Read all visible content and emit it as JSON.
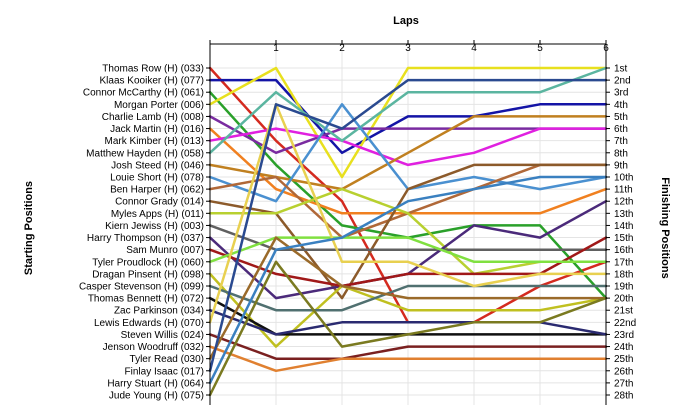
{
  "chart_data": {
    "type": "line",
    "title": "Laps",
    "ylabel": "Starting Positions",
    "y2label": "Finishing Positions",
    "laps": [
      "1",
      "2",
      "3",
      "4",
      "5",
      "6"
    ],
    "x": [
      0,
      1,
      2,
      3,
      4,
      5,
      6
    ],
    "starting_positions": [
      "Thomas Row (H) (033)",
      "Klaas Kooiker (H) (077)",
      "Connor McCarthy (H) (061)",
      "Morgan Porter (006)",
      "Charlie Lamb (H) (008)",
      "Jack Martin (H) (016)",
      "Mark Kimber (H) (013)",
      "Matthew Hayden (H) (058)",
      "Josh Steed (H) (046)",
      "Louie Short (H) (078)",
      "Ben Harper (H) (062)",
      "Connor Grady (014)",
      "Myles Apps (H) (011)",
      "Kiern Jewiss (H) (003)",
      "Harry Thompson (H) (037)",
      "Sam Munro (007)",
      "Tyler Proudlock (H) (060)",
      "Dragan Pinsent (H) (098)",
      "Casper Stevenson (H) (099)",
      "Thomas Bennett (H) (072)",
      "Zac Parkinson (034)",
      "Lewis Edwards (H) (070)",
      "Steven Willis (024)",
      "Jenson Woodruff (032)",
      "Tyler Read (030)",
      "Finlay Isaac (017)",
      "Harry Stuart (H) (064)",
      "Jude Young (H) (075)"
    ],
    "finishing_positions": [
      "1st",
      "2nd",
      "3rd",
      "4th",
      "5th",
      "6th",
      "7th",
      "8th",
      "9th",
      "10th",
      "11th",
      "12th",
      "13th",
      "14th",
      "15th",
      "16th",
      "17th",
      "18th",
      "19th",
      "20th",
      "21st",
      "22nd",
      "23rd",
      "24th",
      "25th",
      "26th",
      "27th",
      "28th"
    ],
    "ylim": [
      1,
      28
    ],
    "xlim": [
      0,
      6
    ],
    "grid": true,
    "series": [
      {
        "color": "#d42a1f",
        "values": [
          1,
          7,
          12,
          22,
          22,
          19,
          17
        ]
      },
      {
        "color": "#1414a6",
        "values": [
          2,
          2,
          8,
          5,
          5,
          4,
          4
        ]
      },
      {
        "color": "#2aa02a",
        "values": [
          3,
          9,
          14,
          15,
          14,
          14,
          20
        ]
      },
      {
        "color": "#e8e01e",
        "values": [
          4,
          1,
          10,
          1,
          1,
          1,
          1
        ]
      },
      {
        "color": "#7a2ba0",
        "values": [
          5,
          8,
          6,
          6,
          6,
          6,
          6
        ]
      },
      {
        "color": "#f08020",
        "values": [
          6,
          11,
          13,
          13,
          13,
          13,
          11
        ]
      },
      {
        "color": "#e020e0",
        "values": [
          7,
          6,
          7,
          9,
          8,
          6,
          6
        ]
      },
      {
        "color": "#5bb5a0",
        "values": [
          8,
          3,
          7,
          3,
          3,
          3,
          1
        ]
      },
      {
        "color": "#c08020",
        "values": [
          9,
          10,
          11,
          8,
          5,
          5,
          5
        ]
      },
      {
        "color": "#4a90d0",
        "values": [
          10,
          12,
          4,
          11,
          10,
          11,
          10
        ]
      },
      {
        "color": "#b06838",
        "values": [
          11,
          10,
          15,
          13,
          11,
          9,
          9
        ]
      },
      {
        "color": "#8c5a2a",
        "values": [
          12,
          13,
          20,
          11,
          9,
          9,
          9
        ]
      },
      {
        "color": "#b8d030",
        "values": [
          13,
          13,
          11,
          13,
          18,
          17,
          17
        ]
      },
      {
        "color": "#606060",
        "values": [
          14,
          16,
          16,
          16,
          16,
          16,
          16
        ]
      },
      {
        "color": "#4b2a7a",
        "values": [
          15,
          20,
          19,
          18,
          14,
          15,
          12
        ]
      },
      {
        "color": "#a01818",
        "values": [
          16,
          18,
          19,
          18,
          18,
          18,
          15
        ]
      },
      {
        "color": "#80e040",
        "values": [
          17,
          15,
          15,
          15,
          17,
          17,
          17
        ]
      },
      {
        "color": "#c0c020",
        "values": [
          18,
          24,
          19,
          21,
          21,
          21,
          20
        ]
      },
      {
        "color": "#507070",
        "values": [
          19,
          21,
          21,
          19,
          19,
          19,
          19
        ]
      },
      {
        "color": "#101010",
        "values": [
          20,
          23,
          23,
          23,
          23,
          23,
          23
        ]
      },
      {
        "color": "#2a2a70",
        "values": [
          21,
          23,
          22,
          22,
          22,
          22,
          23
        ]
      },
      {
        "color": "#e8d050",
        "values": [
          22,
          4,
          17,
          17,
          19,
          18,
          18
        ]
      },
      {
        "color": "#7a2020",
        "values": [
          23,
          25,
          25,
          24,
          24,
          24,
          24
        ]
      },
      {
        "color": "#e08030",
        "values": [
          24,
          26,
          25,
          25,
          25,
          25,
          25
        ]
      },
      {
        "color": "#9a6a2a",
        "values": [
          25,
          15,
          19,
          20,
          20,
          20,
          20
        ]
      },
      {
        "color": "#2a4a90",
        "values": [
          26,
          4,
          6,
          2,
          2,
          2,
          2
        ]
      },
      {
        "color": "#3a80c0",
        "values": [
          27,
          16,
          15,
          12,
          11,
          10,
          10
        ]
      },
      {
        "color": "#7a7a20",
        "values": [
          28,
          17,
          24,
          23,
          22,
          22,
          20
        ]
      }
    ]
  }
}
